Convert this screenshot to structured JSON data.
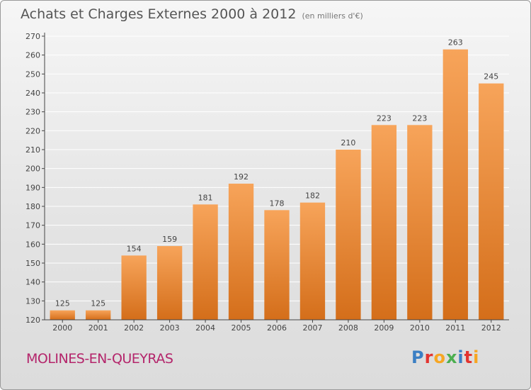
{
  "header": {
    "title": "Achats et Charges Externes 2000 à 2012",
    "unit": "(en milliers d'€)"
  },
  "commune": "MOLINES-EN-QUEYRAS",
  "logo": {
    "text": "Proxiti",
    "letters": [
      {
        "ch": "P",
        "color": "#3b7fc4"
      },
      {
        "ch": "r",
        "color": "#e3342f"
      },
      {
        "ch": "o",
        "color": "#f6a623"
      },
      {
        "ch": "x",
        "color": "#4caf50"
      },
      {
        "ch": "i",
        "color": "#3b7fc4"
      },
      {
        "ch": "t",
        "color": "#e3342f"
      },
      {
        "ch": "i",
        "color": "#f6a623"
      }
    ]
  },
  "colors": {
    "bar_top": "#f7a45a",
    "bar_bottom": "#d46e1a",
    "axis": "#444444",
    "grid": "#ffffff",
    "text": "#444444"
  },
  "chart_data": {
    "type": "bar",
    "title": "Achats et Charges Externes 2000 à 2012",
    "xlabel": "",
    "ylabel": "",
    "ylim": [
      120,
      270
    ],
    "yticks": [
      120,
      130,
      140,
      150,
      160,
      170,
      180,
      190,
      200,
      210,
      220,
      230,
      240,
      250,
      260,
      270
    ],
    "grid": true,
    "categories": [
      "2000",
      "2001",
      "2002",
      "2003",
      "2004",
      "2005",
      "2006",
      "2007",
      "2008",
      "2009",
      "2010",
      "2011",
      "2012"
    ],
    "values": [
      125,
      125,
      154,
      159,
      181,
      192,
      178,
      182,
      210,
      223,
      223,
      263,
      245
    ]
  }
}
